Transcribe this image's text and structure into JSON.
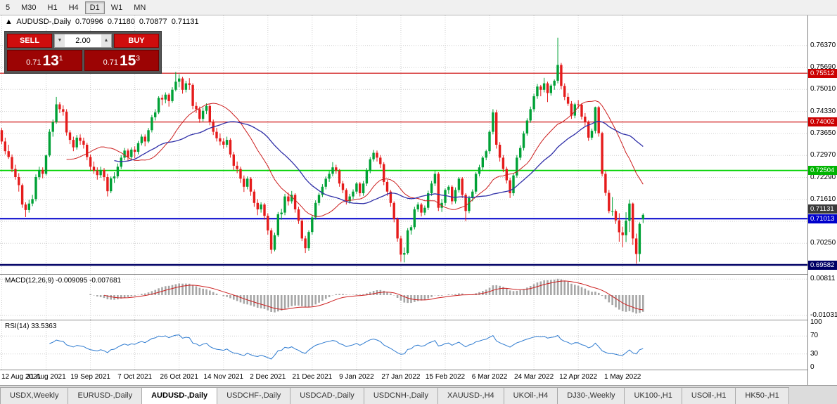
{
  "toolbar": {
    "timeframes": [
      "5",
      "M30",
      "H1",
      "H4",
      "D1",
      "W1",
      "MN"
    ],
    "active": "D1"
  },
  "header": {
    "direction_icon": "▲",
    "symbol": "AUDUSD-,Daily",
    "open": "0.70996",
    "high": "0.71180",
    "low": "0.70877",
    "close": "0.71131"
  },
  "trade_panel": {
    "sell_label": "SELL",
    "buy_label": "BUY",
    "lot_size": "2.00",
    "bid_prefix": "0.71",
    "bid_big": "13",
    "bid_sup": "1",
    "ask_prefix": "0.71",
    "ask_big": "15",
    "ask_sup": "3"
  },
  "macd_pane": {
    "label": "MACD(12,26,9) -0.009095 -0.007681",
    "axis_labels": [
      "0.00811",
      "-0.01031"
    ]
  },
  "rsi_pane": {
    "label": "RSI(14) 33.5363",
    "axis_labels": [
      "100",
      "70",
      "30",
      "0"
    ]
  },
  "price_axis": {
    "tick_labels": [
      "0.76370",
      "0.75690",
      "0.75010",
      "0.74330",
      "0.73650",
      "0.72970",
      "0.72290",
      "0.71610",
      "0.70930",
      "0.70250",
      "0.69570"
    ],
    "badges": [
      {
        "value": "0.75512",
        "bg": "#cc0000",
        "stack": "center"
      },
      {
        "value": "0.74002",
        "bg": "#cc0000",
        "stack": "center"
      },
      {
        "value": "0.72504",
        "bg": "#00b400",
        "stack": "center"
      },
      {
        "value": "0.71131",
        "bg": "#3a3a3a",
        "stack": "above"
      },
      {
        "value": "0.71013",
        "bg": "#0000cc",
        "stack": "center"
      },
      {
        "value": "0.69582",
        "bg": "#000066",
        "stack": "center"
      }
    ]
  },
  "time_axis": {
    "labels": [
      "12 Aug 2021",
      "31 Aug 2021",
      "19 Sep 2021",
      "7 Oct 2021",
      "26 Oct 2021",
      "14 Nov 2021",
      "2 Dec 2021",
      "21 Dec 2021",
      "9 Jan 2022",
      "27 Jan 2022",
      "15 Feb 2022",
      "6 Mar 2022",
      "24 Mar 2022",
      "12 Apr 2022",
      "1 May 2022"
    ]
  },
  "tabs": {
    "active_index": 2,
    "items": [
      "USDX,Weekly",
      "EURUSD-,Daily",
      "AUDUSD-,Daily",
      "USDCHF-,Daily",
      "USDCAD-,Daily",
      "USDCNH-,Daily",
      "XAUUSD-,H4",
      "UKOil-,H4",
      "DJ30-,Weekly",
      "UK100-,H1",
      "USOil-,H1",
      "HK50-,H1"
    ]
  },
  "colors": {
    "up": "#00a136",
    "down": "#e51b1b",
    "grid": "#cfcfcf",
    "ma_fast": "#cc1f1f",
    "ma_slow": "#3030a8",
    "macd_hist": "#a6a6a6",
    "macd_signal": "#cc1f1f",
    "rsi": "#2e7bd0"
  },
  "chart_data": {
    "type": "candlestick",
    "title": "AUDUSD-,Daily",
    "current_ohlc": {
      "open": 0.70996,
      "high": 0.7118,
      "low": 0.70877,
      "close": 0.71131
    },
    "tick_interval": 13,
    "x_tick_labels": [
      "12 Aug 2021",
      "31 Aug 2021",
      "19 Sep 2021",
      "7 Oct 2021",
      "26 Oct 2021",
      "14 Nov 2021",
      "2 Dec 2021",
      "21 Dec 2021",
      "9 Jan 2022",
      "27 Jan 2022",
      "15 Feb 2022",
      "6 Mar 2022",
      "24 Mar 2022",
      "12 Apr 2022",
      "1 May 2022"
    ],
    "y_ticks": [
      0.7637,
      0.7569,
      0.7501,
      0.7433,
      0.7365,
      0.7297,
      0.7229,
      0.7161,
      0.7093,
      0.7025,
      0.6957
    ],
    "horizontal_lines": [
      {
        "price": 0.75512,
        "color": "#cc0000",
        "width": 1.2
      },
      {
        "price": 0.74002,
        "color": "#cc0000",
        "width": 1.2
      },
      {
        "price": 0.72504,
        "color": "#00d200",
        "width": 1.8
      },
      {
        "price": 0.71013,
        "color": "#0000cc",
        "width": 2.0
      },
      {
        "price": 0.69582,
        "color": "#000066",
        "width": 2.5
      }
    ],
    "macd": {
      "params": "12,26,9",
      "value": -0.009095,
      "signal": -0.007681,
      "axis_max": 0.00811,
      "axis_min": -0.01031
    },
    "rsi": {
      "period": 14,
      "value": 33.5363,
      "levels": [
        100,
        70,
        30,
        0
      ]
    },
    "candles": [
      [
        0.7375,
        0.7382,
        0.7332,
        0.734
      ],
      [
        0.734,
        0.7352,
        0.73,
        0.731
      ],
      [
        0.731,
        0.733,
        0.7286,
        0.7292
      ],
      [
        0.7292,
        0.73,
        0.7245,
        0.7255
      ],
      [
        0.7255,
        0.7268,
        0.7222,
        0.723
      ],
      [
        0.723,
        0.7242,
        0.7185,
        0.7205
      ],
      [
        0.7205,
        0.721,
        0.7135,
        0.7145
      ],
      [
        0.7145,
        0.7152,
        0.7106,
        0.7128
      ],
      [
        0.7128,
        0.716,
        0.712,
        0.7148
      ],
      [
        0.7148,
        0.7175,
        0.714,
        0.7162
      ],
      [
        0.7162,
        0.7238,
        0.7155,
        0.723
      ],
      [
        0.723,
        0.7262,
        0.7222,
        0.7252
      ],
      [
        0.7252,
        0.726,
        0.7226,
        0.724
      ],
      [
        0.724,
        0.73,
        0.7235,
        0.7297
      ],
      [
        0.7297,
        0.7378,
        0.7292,
        0.737
      ],
      [
        0.737,
        0.7408,
        0.7355,
        0.74
      ],
      [
        0.74,
        0.7478,
        0.7395,
        0.7455
      ],
      [
        0.7455,
        0.7462,
        0.7428,
        0.744
      ],
      [
        0.744,
        0.7452,
        0.742,
        0.7432
      ],
      [
        0.7432,
        0.744,
        0.7358,
        0.7368
      ],
      [
        0.7368,
        0.7375,
        0.7332,
        0.7345
      ],
      [
        0.7345,
        0.7355,
        0.731,
        0.7322
      ],
      [
        0.7322,
        0.736,
        0.7315,
        0.7352
      ],
      [
        0.7352,
        0.7362,
        0.733,
        0.7342
      ],
      [
        0.7342,
        0.7352,
        0.7318,
        0.733
      ],
      [
        0.733,
        0.7336,
        0.7282,
        0.7292
      ],
      [
        0.7292,
        0.73,
        0.725,
        0.7262
      ],
      [
        0.7262,
        0.7278,
        0.724,
        0.725
      ],
      [
        0.725,
        0.726,
        0.7222,
        0.7236
      ],
      [
        0.7236,
        0.7262,
        0.7228,
        0.7252
      ],
      [
        0.7252,
        0.7258,
        0.7218,
        0.723
      ],
      [
        0.723,
        0.724,
        0.717,
        0.7186
      ],
      [
        0.7186,
        0.7232,
        0.718,
        0.7226
      ],
      [
        0.7226,
        0.7245,
        0.7212,
        0.7232
      ],
      [
        0.7232,
        0.7272,
        0.7225,
        0.7262
      ],
      [
        0.7262,
        0.7298,
        0.7255,
        0.729
      ],
      [
        0.729,
        0.732,
        0.7282,
        0.7312
      ],
      [
        0.7312,
        0.7318,
        0.728,
        0.7292
      ],
      [
        0.7292,
        0.7322,
        0.7285,
        0.7315
      ],
      [
        0.7315,
        0.7325,
        0.7288,
        0.7308
      ],
      [
        0.7308,
        0.7342,
        0.73,
        0.7335
      ],
      [
        0.7335,
        0.7362,
        0.7328,
        0.7355
      ],
      [
        0.7355,
        0.7362,
        0.7325,
        0.734
      ],
      [
        0.734,
        0.7382,
        0.7335,
        0.7375
      ],
      [
        0.7375,
        0.7422,
        0.7368,
        0.7415
      ],
      [
        0.7415,
        0.744,
        0.7405,
        0.743
      ],
      [
        0.743,
        0.748,
        0.7425,
        0.7475
      ],
      [
        0.7475,
        0.7485,
        0.7452,
        0.747
      ],
      [
        0.747,
        0.7492,
        0.7458,
        0.7485
      ],
      [
        0.7485,
        0.749,
        0.7448,
        0.7465
      ],
      [
        0.7465,
        0.7508,
        0.746,
        0.75
      ],
      [
        0.75,
        0.7555,
        0.7495,
        0.7525
      ],
      [
        0.7525,
        0.7548,
        0.7508,
        0.7535
      ],
      [
        0.7535,
        0.754,
        0.7488,
        0.75
      ],
      [
        0.75,
        0.7528,
        0.7492,
        0.752
      ],
      [
        0.752,
        0.7536,
        0.75,
        0.7515
      ],
      [
        0.7515,
        0.752,
        0.744,
        0.745
      ],
      [
        0.745,
        0.7462,
        0.7428,
        0.744
      ],
      [
        0.744,
        0.7448,
        0.7398,
        0.741
      ],
      [
        0.741,
        0.7445,
        0.7402,
        0.7435
      ],
      [
        0.7435,
        0.7458,
        0.7425,
        0.745
      ],
      [
        0.745,
        0.7455,
        0.739,
        0.74
      ],
      [
        0.74,
        0.7408,
        0.736,
        0.737
      ],
      [
        0.737,
        0.7382,
        0.734,
        0.735
      ],
      [
        0.735,
        0.7365,
        0.7328,
        0.734
      ],
      [
        0.734,
        0.735,
        0.7318,
        0.733
      ],
      [
        0.733,
        0.7355,
        0.7322,
        0.7345
      ],
      [
        0.7345,
        0.735,
        0.729,
        0.73
      ],
      [
        0.73,
        0.7308,
        0.7252,
        0.7265
      ],
      [
        0.7265,
        0.7278,
        0.7242,
        0.7255
      ],
      [
        0.7255,
        0.7262,
        0.7212,
        0.7225
      ],
      [
        0.7225,
        0.7235,
        0.7184,
        0.72
      ],
      [
        0.72,
        0.7232,
        0.7192,
        0.7225
      ],
      [
        0.7225,
        0.723,
        0.7172,
        0.7185
      ],
      [
        0.7185,
        0.7192,
        0.7138,
        0.715
      ],
      [
        0.715,
        0.7162,
        0.7112,
        0.713
      ],
      [
        0.713,
        0.7152,
        0.712,
        0.7145
      ],
      [
        0.7145,
        0.715,
        0.7098,
        0.711
      ],
      [
        0.711,
        0.7118,
        0.7052,
        0.7065
      ],
      [
        0.7065,
        0.7072,
        0.6993,
        0.7005
      ],
      [
        0.7005,
        0.7058,
        0.7,
        0.705
      ],
      [
        0.705,
        0.7122,
        0.7045,
        0.7115
      ],
      [
        0.7115,
        0.7132,
        0.7098,
        0.712
      ],
      [
        0.712,
        0.7178,
        0.7112,
        0.717
      ],
      [
        0.717,
        0.7182,
        0.7142,
        0.7155
      ],
      [
        0.7155,
        0.7187,
        0.7148,
        0.7175
      ],
      [
        0.7175,
        0.718,
        0.712,
        0.713
      ],
      [
        0.713,
        0.7138,
        0.7085,
        0.7095
      ],
      [
        0.7095,
        0.7102,
        0.7032,
        0.704
      ],
      [
        0.704,
        0.7048,
        0.6995,
        0.701
      ],
      [
        0.701,
        0.7065,
        0.7002,
        0.706
      ],
      [
        0.706,
        0.7112,
        0.7052,
        0.7105
      ],
      [
        0.7105,
        0.7158,
        0.7098,
        0.715
      ],
      [
        0.715,
        0.7182,
        0.7142,
        0.7175
      ],
      [
        0.7175,
        0.7208,
        0.7168,
        0.72
      ],
      [
        0.72,
        0.7232,
        0.7192,
        0.7225
      ],
      [
        0.7225,
        0.7248,
        0.7215,
        0.724
      ],
      [
        0.724,
        0.7276,
        0.7232,
        0.726
      ],
      [
        0.726,
        0.7268,
        0.724,
        0.725
      ],
      [
        0.725,
        0.7255,
        0.72,
        0.721
      ],
      [
        0.721,
        0.7218,
        0.718,
        0.719
      ],
      [
        0.719,
        0.7195,
        0.7145,
        0.7155
      ],
      [
        0.7155,
        0.7178,
        0.7148,
        0.717
      ],
      [
        0.717,
        0.7192,
        0.7162,
        0.7185
      ],
      [
        0.7185,
        0.7215,
        0.7178,
        0.721
      ],
      [
        0.721,
        0.7215,
        0.717,
        0.718
      ],
      [
        0.718,
        0.7218,
        0.7172,
        0.721
      ],
      [
        0.721,
        0.7258,
        0.7202,
        0.725
      ],
      [
        0.725,
        0.7292,
        0.7242,
        0.7285
      ],
      [
        0.7285,
        0.7314,
        0.7278,
        0.7305
      ],
      [
        0.7305,
        0.7312,
        0.7278,
        0.729
      ],
      [
        0.729,
        0.7298,
        0.7258,
        0.727
      ],
      [
        0.727,
        0.7276,
        0.7205,
        0.7215
      ],
      [
        0.7215,
        0.7222,
        0.7172,
        0.7185
      ],
      [
        0.7185,
        0.719,
        0.7138,
        0.715
      ],
      [
        0.715,
        0.7155,
        0.709,
        0.71
      ],
      [
        0.71,
        0.7105,
        0.703,
        0.704
      ],
      [
        0.704,
        0.7048,
        0.6968,
        0.699
      ],
      [
        0.699,
        0.7012,
        0.6966,
        0.6995
      ],
      [
        0.6995,
        0.7072,
        0.699,
        0.7065
      ],
      [
        0.7065,
        0.7082,
        0.7052,
        0.7075
      ],
      [
        0.7075,
        0.7138,
        0.7068,
        0.713
      ],
      [
        0.713,
        0.7152,
        0.7122,
        0.7145
      ],
      [
        0.7145,
        0.715,
        0.7108,
        0.712
      ],
      [
        0.712,
        0.7142,
        0.7112,
        0.7135
      ],
      [
        0.7135,
        0.7188,
        0.7128,
        0.718
      ],
      [
        0.718,
        0.7218,
        0.7172,
        0.721
      ],
      [
        0.721,
        0.7249,
        0.7202,
        0.724
      ],
      [
        0.724,
        0.7245,
        0.7125,
        0.7135
      ],
      [
        0.7135,
        0.7162,
        0.7122,
        0.715
      ],
      [
        0.715,
        0.7195,
        0.7142,
        0.719
      ],
      [
        0.719,
        0.7205,
        0.7178,
        0.72
      ],
      [
        0.72,
        0.7205,
        0.7145,
        0.7155
      ],
      [
        0.7155,
        0.7198,
        0.7148,
        0.719
      ],
      [
        0.719,
        0.723,
        0.7182,
        0.7225
      ],
      [
        0.7225,
        0.723,
        0.7165,
        0.7175
      ],
      [
        0.7175,
        0.718,
        0.7094,
        0.7125
      ],
      [
        0.7125,
        0.7172,
        0.7118,
        0.7165
      ],
      [
        0.7165,
        0.7192,
        0.7155,
        0.7185
      ],
      [
        0.7185,
        0.7245,
        0.7178,
        0.724
      ],
      [
        0.724,
        0.7268,
        0.7232,
        0.726
      ],
      [
        0.726,
        0.7295,
        0.7252,
        0.729
      ],
      [
        0.729,
        0.7315,
        0.7282,
        0.731
      ],
      [
        0.731,
        0.7375,
        0.7302,
        0.737
      ],
      [
        0.737,
        0.744,
        0.7362,
        0.743
      ],
      [
        0.743,
        0.7438,
        0.7318,
        0.733
      ],
      [
        0.733,
        0.7338,
        0.7278,
        0.729
      ],
      [
        0.729,
        0.7298,
        0.7245,
        0.7255
      ],
      [
        0.7255,
        0.7262,
        0.721,
        0.722
      ],
      [
        0.722,
        0.7228,
        0.7165,
        0.718
      ],
      [
        0.718,
        0.7242,
        0.7172,
        0.7235
      ],
      [
        0.7235,
        0.7298,
        0.7228,
        0.729
      ],
      [
        0.729,
        0.7328,
        0.7282,
        0.732
      ],
      [
        0.732,
        0.7372,
        0.7312,
        0.7365
      ],
      [
        0.7365,
        0.7412,
        0.7358,
        0.7405
      ],
      [
        0.7405,
        0.7448,
        0.7398,
        0.744
      ],
      [
        0.744,
        0.7488,
        0.7432,
        0.748
      ],
      [
        0.748,
        0.7518,
        0.7472,
        0.751
      ],
      [
        0.751,
        0.7515,
        0.748,
        0.75
      ],
      [
        0.75,
        0.7537,
        0.7492,
        0.752
      ],
      [
        0.752,
        0.7525,
        0.7462,
        0.749
      ],
      [
        0.749,
        0.7518,
        0.7482,
        0.7513
      ],
      [
        0.7513,
        0.7532,
        0.75,
        0.7528
      ],
      [
        0.7528,
        0.7661,
        0.752,
        0.7577
      ],
      [
        0.7577,
        0.7583,
        0.7502,
        0.7512
      ],
      [
        0.7512,
        0.752,
        0.7468,
        0.7478
      ],
      [
        0.7478,
        0.749,
        0.745,
        0.7457
      ],
      [
        0.7457,
        0.7465,
        0.741,
        0.742
      ],
      [
        0.742,
        0.746,
        0.7412,
        0.7455
      ],
      [
        0.7455,
        0.7468,
        0.7442,
        0.7454
      ],
      [
        0.7454,
        0.7458,
        0.7408,
        0.7417
      ],
      [
        0.7417,
        0.7428,
        0.7388,
        0.74
      ],
      [
        0.74,
        0.7405,
        0.7342,
        0.7352
      ],
      [
        0.7352,
        0.738,
        0.7345,
        0.7373
      ],
      [
        0.7373,
        0.7448,
        0.7365,
        0.7446
      ],
      [
        0.7446,
        0.745,
        0.7355,
        0.7366
      ],
      [
        0.7366,
        0.737,
        0.7232,
        0.724
      ],
      [
        0.724,
        0.7248,
        0.7172,
        0.7181
      ],
      [
        0.7181,
        0.719,
        0.7118,
        0.7125
      ],
      [
        0.7125,
        0.7168,
        0.711,
        0.7125
      ],
      [
        0.7125,
        0.713,
        0.7085,
        0.7096
      ],
      [
        0.7096,
        0.7118,
        0.703,
        0.7059
      ],
      [
        0.7059,
        0.7076,
        0.7013,
        0.705
      ],
      [
        0.705,
        0.7121,
        0.7029,
        0.7095
      ],
      [
        0.7095,
        0.716,
        0.706,
        0.7148
      ],
      [
        0.7148,
        0.7151,
        0.702,
        0.704
      ],
      [
        0.704,
        0.7055,
        0.6962,
        0.6992
      ],
      [
        0.6992,
        0.709,
        0.6968,
        0.7085
      ],
      [
        0.70996,
        0.7118,
        0.70877,
        0.71131
      ]
    ]
  }
}
